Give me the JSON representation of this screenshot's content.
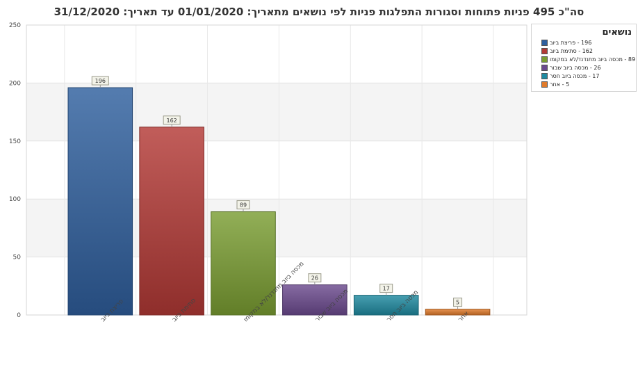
{
  "title": "סה\"כ 495 פניות פתוחות וסגורות התפלגות פניות לפי נושאים מתאריך: 01/01/2020  עד תאריך: 31/12/2020",
  "legend": {
    "title": "נושאים",
    "items": [
      {
        "label": "196 - פריצת ביוב"
      },
      {
        "label": "162 - סתימת ביוב"
      },
      {
        "label": "89 - מכסה ביוב מתנדנד/לא במקומו"
      },
      {
        "label": "26 - מכסה ביוב שבור"
      },
      {
        "label": "17 - מכסה ביוב חסר"
      },
      {
        "label": "5 - אחר"
      }
    ]
  },
  "chart_data": {
    "type": "bar",
    "categories": [
      "פריצת ביוב",
      "סתימת ביוב",
      "מכסה ביוב מתנדנד/לא במקומו",
      "מכסה ביוב שבור",
      "מכסה ביוב חסר",
      "אחר"
    ],
    "values": [
      196,
      162,
      89,
      26,
      17,
      5
    ],
    "colors": [
      "#2f5f9e",
      "#b33a36",
      "#7a9e32",
      "#6b4a8e",
      "#1f8aa0",
      "#e07a2a"
    ],
    "ylim": [
      0,
      250
    ],
    "yticks": [
      0,
      50,
      100,
      150,
      200,
      250
    ],
    "grid": true,
    "legend_position": "top-right"
  }
}
